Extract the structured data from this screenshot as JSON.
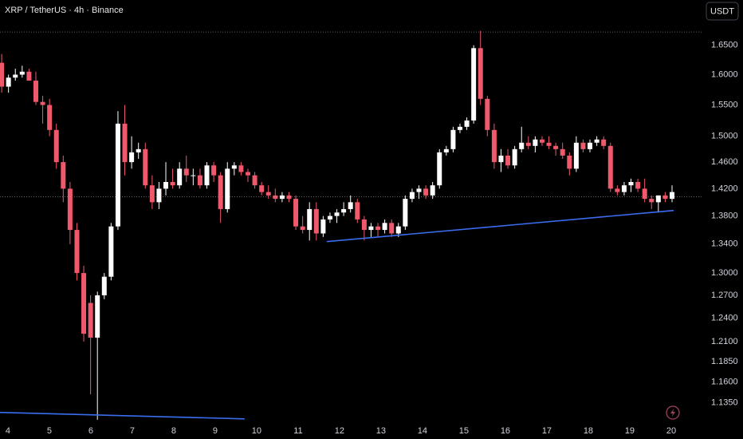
{
  "chart_data": {
    "type": "candlestick",
    "title": "XRP / TetherUS · 4h · Binance",
    "currency": "USDT",
    "x": [
      3.85,
      4.015,
      4.18,
      4.345,
      4.51,
      4.675,
      4.84,
      5.005,
      5.17,
      5.335,
      5.5,
      5.665,
      5.83,
      5.995,
      6.16,
      6.325,
      6.49,
      6.655,
      6.82,
      6.985,
      7.15,
      7.315,
      7.48,
      7.645,
      7.81,
      7.975,
      8.14,
      8.305,
      8.47,
      8.635,
      8.8,
      8.965,
      9.13,
      9.295,
      9.46,
      9.625,
      9.79,
      9.955,
      10.12,
      10.285,
      10.45,
      10.615,
      10.78,
      10.945,
      11.11,
      11.275,
      11.44,
      11.605,
      11.77,
      11.935,
      12.1,
      12.265,
      12.43,
      12.595,
      12.76,
      12.925,
      13.09,
      13.255,
      13.42,
      13.585,
      13.75,
      13.915,
      14.08,
      14.245,
      14.41,
      14.575,
      14.74,
      14.905,
      15.07,
      15.235,
      15.4,
      15.565,
      15.73,
      15.895,
      16.06,
      16.225,
      16.39,
      16.555,
      16.72,
      16.885,
      17.05,
      17.215,
      17.38,
      17.545,
      17.71,
      17.875,
      18.04,
      18.205,
      18.37,
      18.535,
      18.7,
      18.865,
      19.03,
      19.195,
      19.36,
      19.525,
      19.69,
      19.855,
      20.02
    ],
    "open": [
      1.62,
      1.58,
      1.595,
      1.6,
      1.605,
      1.59,
      1.555,
      1.55,
      1.51,
      1.46,
      1.42,
      1.36,
      1.3,
      1.26,
      1.215,
      1.27,
      1.295,
      1.365,
      1.52,
      1.46,
      1.475,
      1.48,
      1.425,
      1.4,
      1.42,
      1.43,
      1.425,
      1.45,
      1.44,
      1.44,
      1.425,
      1.455,
      1.44,
      1.39,
      1.45,
      1.455,
      1.445,
      1.44,
      1.425,
      1.415,
      1.41,
      1.405,
      1.41,
      1.405,
      1.365,
      1.36,
      1.39,
      1.355,
      1.375,
      1.38,
      1.385,
      1.39,
      1.4,
      1.375,
      1.36,
      1.365,
      1.36,
      1.37,
      1.355,
      1.365,
      1.405,
      1.415,
      1.42,
      1.41,
      1.425,
      1.475,
      1.48,
      1.51,
      1.515,
      1.525,
      1.645,
      1.56,
      1.51,
      1.46,
      1.47,
      1.455,
      1.48,
      1.49,
      1.485,
      1.495,
      1.49,
      1.485,
      1.48,
      1.47,
      1.45,
      1.49,
      1.48,
      1.49,
      1.495,
      1.485,
      1.42,
      1.415,
      1.425,
      1.43,
      1.42,
      1.405,
      1.4,
      1.41,
      1.405
    ],
    "high": [
      1.635,
      1.6,
      1.61,
      1.615,
      1.61,
      1.605,
      1.565,
      1.56,
      1.52,
      1.47,
      1.43,
      1.37,
      1.31,
      1.27,
      1.275,
      1.3,
      1.37,
      1.54,
      1.55,
      1.5,
      1.49,
      1.49,
      1.44,
      1.43,
      1.46,
      1.45,
      1.46,
      1.47,
      1.45,
      1.45,
      1.46,
      1.46,
      1.445,
      1.46,
      1.46,
      1.46,
      1.45,
      1.445,
      1.43,
      1.425,
      1.42,
      1.415,
      1.415,
      1.41,
      1.38,
      1.4,
      1.4,
      1.38,
      1.385,
      1.39,
      1.4,
      1.41,
      1.405,
      1.38,
      1.37,
      1.37,
      1.375,
      1.375,
      1.37,
      1.41,
      1.42,
      1.425,
      1.425,
      1.43,
      1.48,
      1.485,
      1.515,
      1.52,
      1.53,
      1.65,
      1.675,
      1.565,
      1.52,
      1.48,
      1.48,
      1.485,
      1.515,
      1.5,
      1.5,
      1.5,
      1.5,
      1.49,
      1.49,
      1.475,
      1.5,
      1.495,
      1.495,
      1.5,
      1.5,
      1.49,
      1.425,
      1.43,
      1.435,
      1.435,
      1.435,
      1.41,
      1.41,
      1.415,
      1.425
    ],
    "low": [
      1.57,
      1.57,
      1.59,
      1.595,
      1.59,
      1.55,
      1.52,
      1.5,
      1.45,
      1.4,
      1.34,
      1.29,
      1.21,
      1.145,
      1.115,
      1.265,
      1.29,
      1.36,
      1.44,
      1.45,
      1.465,
      1.42,
      1.39,
      1.39,
      1.41,
      1.42,
      1.42,
      1.43,
      1.425,
      1.42,
      1.42,
      1.43,
      1.37,
      1.385,
      1.44,
      1.44,
      1.43,
      1.42,
      1.41,
      1.405,
      1.4,
      1.4,
      1.4,
      1.36,
      1.355,
      1.345,
      1.345,
      1.35,
      1.37,
      1.37,
      1.38,
      1.385,
      1.37,
      1.345,
      1.35,
      1.35,
      1.355,
      1.35,
      1.35,
      1.36,
      1.4,
      1.405,
      1.405,
      1.405,
      1.42,
      1.47,
      1.475,
      1.505,
      1.51,
      1.52,
      1.55,
      1.5,
      1.45,
      1.445,
      1.45,
      1.45,
      1.475,
      1.48,
      1.475,
      1.485,
      1.48,
      1.47,
      1.465,
      1.44,
      1.445,
      1.475,
      1.475,
      1.485,
      1.48,
      1.415,
      1.41,
      1.41,
      1.415,
      1.415,
      1.4,
      1.39,
      1.385,
      1.4,
      1.4
    ],
    "close": [
      1.58,
      1.595,
      1.6,
      1.605,
      1.59,
      1.555,
      1.55,
      1.51,
      1.46,
      1.42,
      1.36,
      1.3,
      1.22,
      1.215,
      1.27,
      1.295,
      1.365,
      1.52,
      1.46,
      1.475,
      1.48,
      1.425,
      1.4,
      1.42,
      1.43,
      1.425,
      1.45,
      1.44,
      1.44,
      1.425,
      1.455,
      1.44,
      1.39,
      1.45,
      1.455,
      1.445,
      1.44,
      1.425,
      1.415,
      1.41,
      1.405,
      1.41,
      1.405,
      1.365,
      1.36,
      1.39,
      1.355,
      1.375,
      1.38,
      1.385,
      1.39,
      1.4,
      1.375,
      1.36,
      1.365,
      1.36,
      1.37,
      1.355,
      1.365,
      1.405,
      1.415,
      1.42,
      1.41,
      1.425,
      1.475,
      1.48,
      1.51,
      1.515,
      1.525,
      1.645,
      1.56,
      1.51,
      1.46,
      1.47,
      1.455,
      1.48,
      1.49,
      1.485,
      1.495,
      1.49,
      1.485,
      1.48,
      1.47,
      1.45,
      1.49,
      1.48,
      1.49,
      1.495,
      1.485,
      1.42,
      1.415,
      1.425,
      1.43,
      1.42,
      1.405,
      1.4,
      1.41,
      1.405,
      1.415
    ],
    "up_color": "#ffffff",
    "down_color": "#f0596b",
    "log_scale": true,
    "ylim": [
      1.113,
      1.73
    ],
    "yticks": [
      {
        "value": 1.65,
        "label": "1.6500"
      },
      {
        "value": 1.6,
        "label": "1.6000"
      },
      {
        "value": 1.55,
        "label": "1.5500"
      },
      {
        "value": 1.5,
        "label": "1.5000"
      },
      {
        "value": 1.46,
        "label": "1.4600"
      },
      {
        "value": 1.42,
        "label": "1.4200"
      },
      {
        "value": 1.38,
        "label": "1.3800"
      },
      {
        "value": 1.34,
        "label": "1.3400"
      },
      {
        "value": 1.3,
        "label": "1.3000"
      },
      {
        "value": 1.27,
        "label": "1.2700"
      },
      {
        "value": 1.24,
        "label": "1.2400"
      },
      {
        "value": 1.21,
        "label": "1.2100"
      },
      {
        "value": 1.185,
        "label": "1.1850"
      },
      {
        "value": 1.16,
        "label": "1.1600"
      },
      {
        "value": 1.135,
        "label": "1.1350"
      }
    ],
    "xlim": [
      3.81,
      20.77
    ],
    "xticks": [
      4,
      5,
      6,
      7,
      8,
      9,
      10,
      11,
      12,
      13,
      14,
      15,
      16,
      17,
      18,
      19,
      20
    ],
    "reference_lines": [
      1.673,
      1.408
    ],
    "trendlines": [
      {
        "x": [
          11.69,
          20.06
        ],
        "y": [
          1.3435,
          1.388
        ],
        "color": "#3a6df0"
      },
      {
        "x": [
          3.81,
          9.71
        ],
        "y": [
          1.1236,
          1.116
        ],
        "color": "#3a6df0"
      }
    ]
  }
}
